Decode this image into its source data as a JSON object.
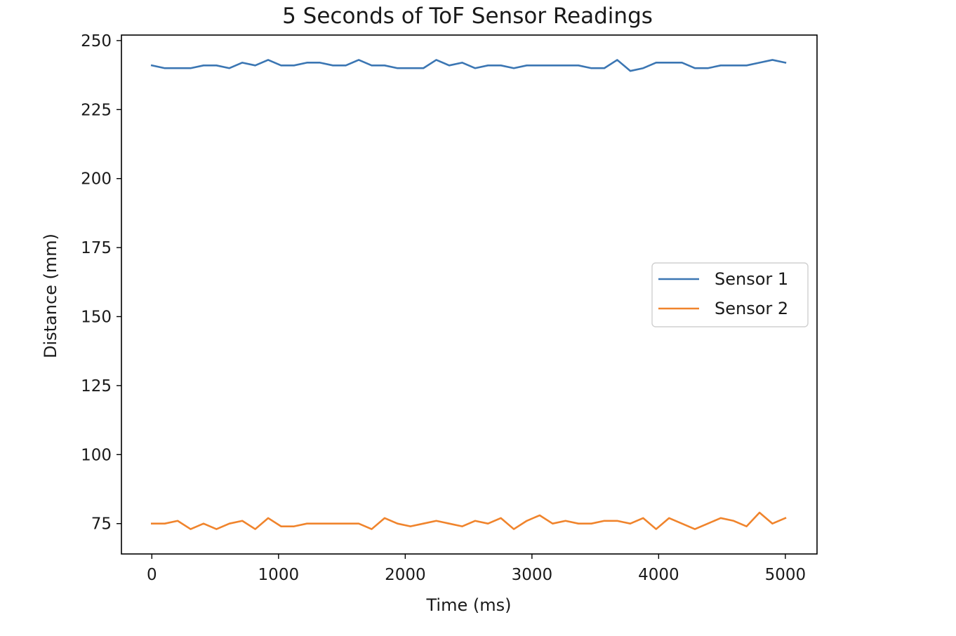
{
  "chart_data": {
    "type": "line",
    "title": "5 Seconds of ToF Sensor Readings",
    "xlabel": "Time (ms)",
    "ylabel": "Distance (mm)",
    "xlim": [
      -240,
      5250
    ],
    "ylim": [
      64,
      252
    ],
    "xticks": [
      0,
      1000,
      2000,
      3000,
      4000,
      5000
    ],
    "yticks": [
      75,
      100,
      125,
      150,
      175,
      200,
      225,
      250
    ],
    "grid": false,
    "legend_position": "center-right",
    "x": [
      0,
      102,
      204,
      306,
      408,
      510,
      612,
      714,
      816,
      918,
      1020,
      1122,
      1224,
      1327,
      1429,
      1531,
      1633,
      1735,
      1837,
      1939,
      2041,
      2143,
      2245,
      2347,
      2449,
      2551,
      2653,
      2755,
      2857,
      2959,
      3061,
      3163,
      3265,
      3367,
      3469,
      3571,
      3673,
      3776,
      3878,
      3980,
      4082,
      4184,
      4286,
      4388,
      4490,
      4592,
      4694,
      4796,
      4898,
      5000
    ],
    "series": [
      {
        "name": "Sensor 1",
        "color": "#3b76b3",
        "values": [
          241,
          240,
          240,
          240,
          241,
          241,
          240,
          242,
          241,
          243,
          241,
          241,
          242,
          242,
          241,
          241,
          243,
          241,
          241,
          240,
          240,
          240,
          243,
          241,
          242,
          240,
          241,
          241,
          240,
          241,
          241,
          241,
          241,
          241,
          240,
          240,
          243,
          239,
          240,
          242,
          242,
          242,
          240,
          240,
          241,
          241,
          241,
          242,
          243,
          242
        ]
      },
      {
        "name": "Sensor 2",
        "color": "#f0842c",
        "values": [
          75,
          75,
          76,
          73,
          75,
          73,
          75,
          76,
          73,
          77,
          74,
          74,
          75,
          75,
          75,
          75,
          75,
          73,
          77,
          75,
          74,
          75,
          76,
          75,
          74,
          76,
          75,
          77,
          73,
          76,
          78,
          75,
          76,
          75,
          75,
          76,
          76,
          75,
          77,
          73,
          77,
          75,
          73,
          75,
          77,
          76,
          74,
          79,
          75,
          77
        ]
      }
    ]
  }
}
